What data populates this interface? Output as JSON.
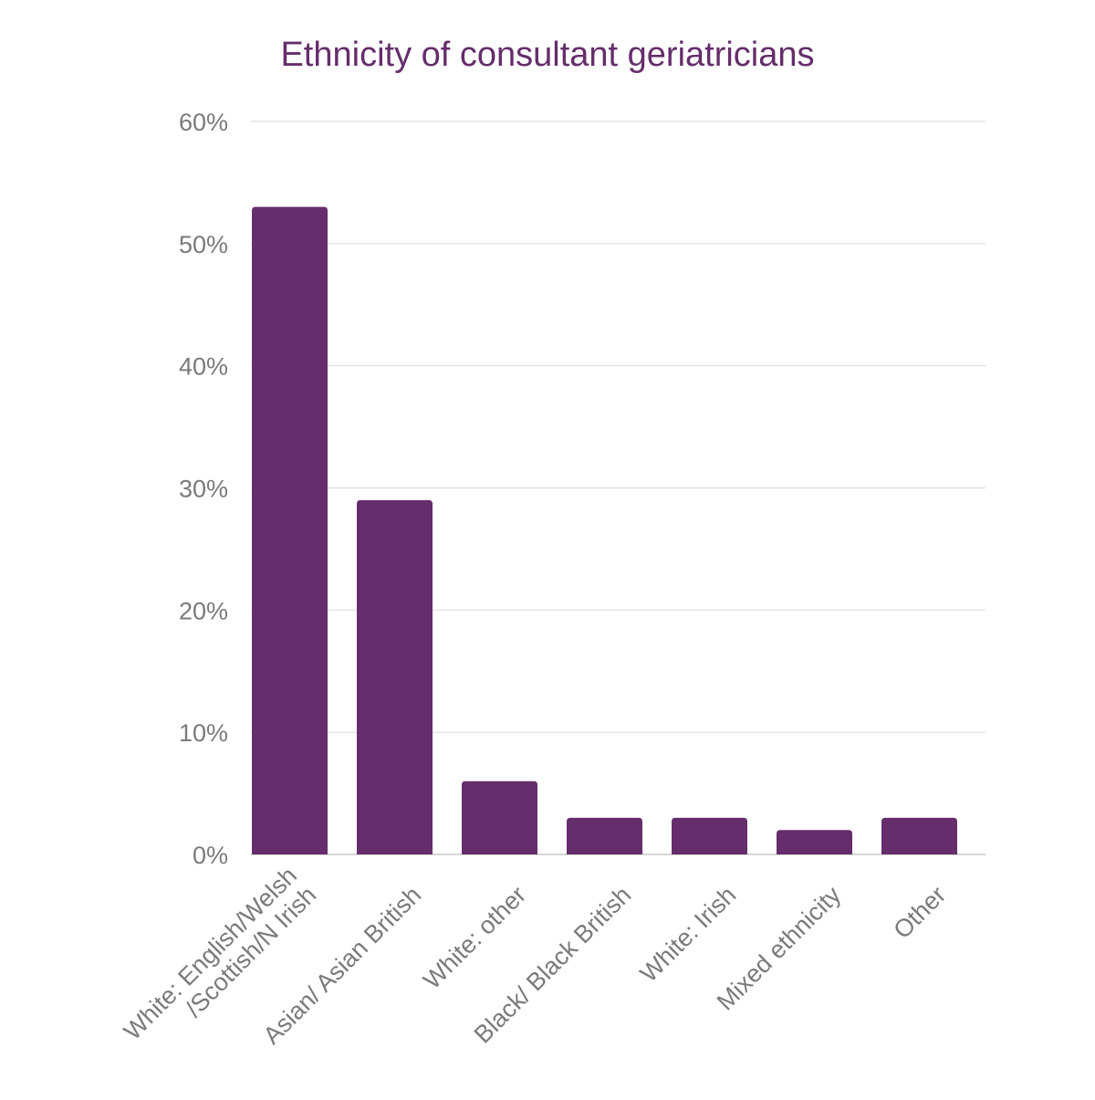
{
  "chart_data": {
    "type": "bar",
    "title": "Ethnicity of consultant geriatricians",
    "xlabel": "",
    "ylabel": "",
    "ylim": [
      0,
      60
    ],
    "y_ticks": [
      0,
      10,
      20,
      30,
      40,
      50,
      60
    ],
    "y_tick_suffix": "%",
    "grid": true,
    "legend": "none",
    "bar_color": "#652d6b",
    "categories": [
      [
        "White: English/Welsh",
        "/Scottish/N Irish"
      ],
      [
        "Asian/ Asian British"
      ],
      [
        "White: other"
      ],
      [
        "Black/ Black British"
      ],
      [
        "White: Irish"
      ],
      [
        "Mixed ethnicity"
      ],
      [
        "Other"
      ]
    ],
    "values": [
      53,
      29,
      6,
      3,
      3,
      2,
      3
    ]
  }
}
